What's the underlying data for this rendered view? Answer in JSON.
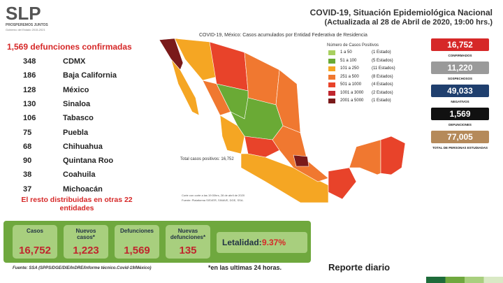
{
  "header": {
    "logo": "SLP",
    "logo_motto": "PROSPEREMOS JUNTOS",
    "logo_sub": "Gobierno del Estado 2015-2021",
    "title": "COVID-19, Situación Epidemiológica Nacional",
    "subtitle": "(Actualizada al 28 de Abril de 2020, 19:00 hrs.)"
  },
  "deaths": {
    "title": "1,569 defunciones confirmadas",
    "rows": [
      [
        "348",
        "CDMX"
      ],
      [
        "186",
        "Baja California"
      ],
      [
        "128",
        "México"
      ],
      [
        "130",
        "Sinaloa"
      ],
      [
        "106",
        "Tabasco"
      ],
      [
        "75",
        "Puebla"
      ],
      [
        "68",
        "Chihuahua"
      ],
      [
        "90",
        "Quintana Roo"
      ],
      [
        "38",
        "Coahuila"
      ],
      [
        "37",
        "Michoacán"
      ]
    ],
    "note": "El resto distribuidas en otras 22 entidades"
  },
  "map": {
    "title": "COVID-19, México: Casos acumulados por Entidad Federativa de Residencia",
    "legend_title": "Número de Casos Positivos",
    "legend": [
      [
        "1 a 50",
        "(1 Estado)"
      ],
      [
        "51 a 100",
        "(5 Estados)"
      ],
      [
        "101 a 250",
        "(11 Estados)"
      ],
      [
        "251 a 500",
        "(8 Estados)"
      ],
      [
        "501 a 1000",
        "(4 Estados)"
      ],
      [
        "1001 a 3000",
        "(2 Estados)"
      ],
      [
        "2001 a 5000",
        "(1 Estado)"
      ]
    ],
    "total": "Total casos positivos: 16,752",
    "cutoff": "Corte con corte a las 19:00hrs, 28 de abril de 2020",
    "source": "Fuente: Plataforma SISVER, SINAVE, DGE, SSA."
  },
  "stats": [
    [
      "16,752",
      "CONFIRMADOS"
    ],
    [
      "11,220",
      "SOSPECHOSOS"
    ],
    [
      "49,033",
      "NEGATIVOS"
    ],
    [
      "1,569",
      "DEFUNCIONES"
    ],
    [
      "77,005",
      "TOTAL DE PERSONAS ESTUDIADAS"
    ]
  ],
  "summary": {
    "boxes": [
      [
        "Casos",
        "16,752"
      ],
      [
        "Nuevos casos*",
        "1,223"
      ],
      [
        "Defunciones",
        "1,569"
      ],
      [
        "Nuevas defunciones*",
        "135"
      ]
    ],
    "lethality_label": "Letalidad:",
    "lethality": "9.37%",
    "note": "*en las ultimas 24 horas.",
    "report": "Reporte diario",
    "source": "Fuente: SSA (SPPS/DGE/DIE/InDRE/Informe técnico.Covid-19/México)"
  }
}
